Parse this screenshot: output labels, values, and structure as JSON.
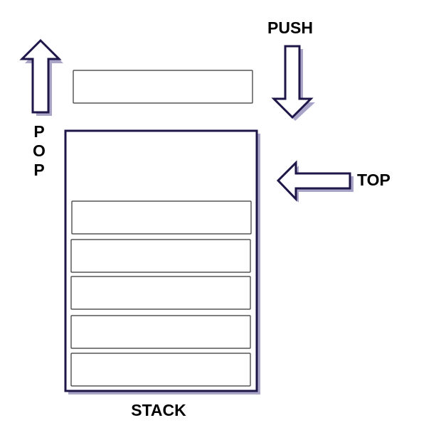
{
  "labels": {
    "push": "PUSH",
    "pop": [
      "P",
      "O",
      "P"
    ],
    "top": "TOP",
    "stack": "STACK"
  },
  "stack": {
    "items_in_stack": 5,
    "incoming_items": 1
  },
  "colors": {
    "outline": "#1e1648",
    "shadow": "#a9a5c9",
    "item_border": "#333333",
    "background": "#ffffff"
  },
  "icons": {
    "pop": "arrow-up-icon",
    "push": "arrow-down-icon",
    "top": "arrow-left-icon"
  }
}
